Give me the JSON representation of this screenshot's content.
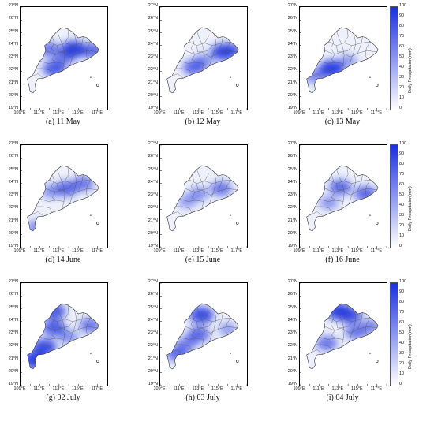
{
  "figure": {
    "latitude_labels": [
      "27°N",
      "26°N",
      "25°N",
      "24°N",
      "23°N",
      "22°N",
      "21°N",
      "20°N",
      "19°N"
    ],
    "longitude_labels": [
      "109°E",
      "111°E",
      "113°E",
      "115°E",
      "117°E"
    ],
    "colorbar": {
      "title": "Daily Precipitation(mm)",
      "ticks": [
        "100",
        "90",
        "80",
        "70",
        "60",
        "50",
        "40",
        "30",
        "20",
        "10",
        "0"
      ],
      "color_min": "#ffffff",
      "color_max": "#1a2fe0"
    },
    "panels": [
      {
        "caption": "(a) 11 May",
        "hotspots": [
          [
            114.5,
            23.7,
            1.0
          ],
          [
            112.5,
            22.2,
            0.8
          ],
          [
            112.0,
            23.7,
            0.6
          ],
          [
            116.5,
            23.6,
            0.7
          ],
          [
            113.5,
            23.0,
            0.5
          ]
        ]
      },
      {
        "caption": "(b) 12 May",
        "hotspots": [
          [
            115.5,
            23.5,
            0.9
          ],
          [
            112.5,
            22.3,
            0.7
          ],
          [
            116.5,
            23.6,
            0.6
          ],
          [
            113.5,
            22.8,
            0.4
          ]
        ]
      },
      {
        "caption": "(c) 13 May",
        "hotspots": [
          [
            112.3,
            22.2,
            1.0
          ],
          [
            110.6,
            21.6,
            0.5
          ],
          [
            114.0,
            22.8,
            0.3
          ]
        ]
      },
      {
        "caption": "(d) 14 June",
        "hotspots": [
          [
            113.8,
            23.6,
            0.7
          ],
          [
            115.5,
            24.0,
            0.6
          ],
          [
            112.2,
            23.4,
            0.4
          ],
          [
            110.6,
            20.6,
            0.4
          ]
        ]
      },
      {
        "caption": "(e) 15 June",
        "hotspots": [
          [
            115.3,
            23.6,
            0.6
          ],
          [
            113.0,
            23.2,
            0.4
          ],
          [
            111.8,
            22.6,
            0.3
          ]
        ]
      },
      {
        "caption": "(f) 16 June",
        "hotspots": [
          [
            113.2,
            23.7,
            0.7
          ],
          [
            115.8,
            23.2,
            0.7
          ],
          [
            112.0,
            22.5,
            0.35
          ]
        ]
      },
      {
        "caption": "(g) 02 July",
        "hotspots": [
          [
            110.5,
            21.0,
            1.0
          ],
          [
            111.5,
            22.0,
            0.9
          ],
          [
            112.5,
            23.5,
            0.8
          ],
          [
            112.5,
            24.8,
            0.8
          ],
          [
            116.2,
            23.7,
            0.6
          ],
          [
            114.0,
            22.8,
            0.4
          ]
        ]
      },
      {
        "caption": "(h) 03 July",
        "hotspots": [
          [
            113.3,
            24.5,
            0.9
          ],
          [
            113.0,
            23.0,
            0.7
          ],
          [
            110.8,
            21.5,
            0.7
          ],
          [
            111.8,
            22.3,
            0.5
          ],
          [
            116.0,
            23.4,
            0.3
          ]
        ]
      },
      {
        "caption": "(i) 04 July",
        "hotspots": [
          [
            113.0,
            24.8,
            0.95
          ],
          [
            114.2,
            24.5,
            0.85
          ],
          [
            111.8,
            22.3,
            0.6
          ],
          [
            114.8,
            23.2,
            0.6
          ],
          [
            116.3,
            23.6,
            0.5
          ]
        ]
      }
    ]
  }
}
